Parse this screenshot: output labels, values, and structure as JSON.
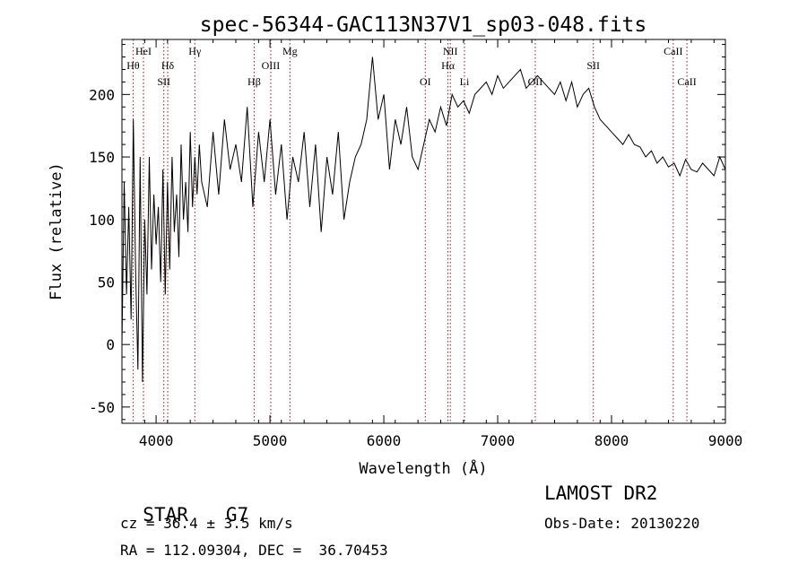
{
  "chart_data": {
    "type": "line",
    "title": "spec-56344-GAC113N37V1_sp03-048.fits",
    "xlabel": "Wavelength (Å)",
    "ylabel": "Flux (relative)",
    "xlim": [
      3700,
      9000
    ],
    "ylim": [
      -63,
      244
    ],
    "xticks": [
      4000,
      5000,
      6000,
      7000,
      8000,
      9000
    ],
    "yticks": [
      -50,
      0,
      50,
      100,
      150,
      200
    ],
    "grid": false,
    "line_color": "#000000",
    "marker_color": "#8b1a1a",
    "series": [
      {
        "x": [
          3700,
          3720,
          3740,
          3760,
          3780,
          3800,
          3820,
          3840,
          3860,
          3880,
          3900,
          3920,
          3940,
          3960,
          3980,
          4000,
          4020,
          4040,
          4060,
          4080,
          4100,
          4120,
          4140,
          4160,
          4180,
          4200,
          4220,
          4240,
          4260,
          4280,
          4300,
          4320,
          4340,
          4360,
          4380,
          4400,
          4450,
          4500,
          4550,
          4600,
          4650,
          4700,
          4750,
          4800,
          4850,
          4900,
          4950,
          5000,
          5050,
          5100,
          5150,
          5200,
          5250,
          5300,
          5350,
          5400,
          5450,
          5500,
          5550,
          5600,
          5650,
          5700,
          5750,
          5800,
          5850,
          5900,
          5950,
          6000,
          6050,
          6100,
          6150,
          6200,
          6250,
          6300,
          6350,
          6400,
          6450,
          6500,
          6550,
          6600,
          6650,
          6700,
          6750,
          6800,
          6850,
          6900,
          6950,
          7000,
          7050,
          7100,
          7150,
          7200,
          7250,
          7300,
          7350,
          7400,
          7450,
          7500,
          7550,
          7600,
          7650,
          7700,
          7750,
          7800,
          7850,
          7900,
          7950,
          8000,
          8050,
          8100,
          8150,
          8200,
          8250,
          8300,
          8350,
          8400,
          8450,
          8500,
          8550,
          8600,
          8650,
          8700,
          8750,
          8800,
          8850,
          8900,
          8950,
          9000
        ],
        "values": [
          0,
          130,
          40,
          110,
          20,
          180,
          60,
          -20,
          150,
          -30,
          100,
          40,
          150,
          60,
          120,
          80,
          110,
          50,
          140,
          40,
          130,
          60,
          150,
          90,
          120,
          70,
          160,
          100,
          130,
          90,
          170,
          110,
          150,
          120,
          160,
          130,
          110,
          170,
          120,
          180,
          140,
          160,
          130,
          190,
          110,
          170,
          130,
          180,
          120,
          160,
          100,
          150,
          130,
          170,
          110,
          160,
          90,
          150,
          120,
          170,
          100,
          130,
          150,
          160,
          180,
          230,
          180,
          200,
          140,
          180,
          160,
          190,
          150,
          140,
          160,
          180,
          170,
          190,
          175,
          200,
          190,
          195,
          185,
          200,
          205,
          210,
          200,
          215,
          205,
          210,
          215,
          220,
          205,
          210,
          215,
          210,
          205,
          200,
          210,
          195,
          210,
          190,
          200,
          205,
          190,
          180,
          175,
          170,
          165,
          160,
          168,
          160,
          158,
          150,
          155,
          145,
          150,
          142,
          145,
          135,
          148,
          140,
          138,
          145,
          140,
          135,
          150,
          140
        ]
      }
    ],
    "line_markers": [
      {
        "label": "Hθ",
        "x": 3798,
        "tier": 2
      },
      {
        "label": "HeI",
        "x": 3889,
        "tier": 1
      },
      {
        "label": "SII",
        "x": 4068,
        "tier": 3
      },
      {
        "label": "Hδ",
        "x": 4102,
        "tier": 2
      },
      {
        "label": "Hγ",
        "x": 4340,
        "tier": 1
      },
      {
        "label": "Hβ",
        "x": 4861,
        "tier": 3
      },
      {
        "label": "OIII",
        "x": 5007,
        "tier": 2
      },
      {
        "label": "Mg",
        "x": 5175,
        "tier": 1
      },
      {
        "label": "OI",
        "x": 6364,
        "tier": 3
      },
      {
        "label": "NII",
        "x": 6584,
        "tier": 1
      },
      {
        "label": "Hα",
        "x": 6563,
        "tier": 2
      },
      {
        "label": "Li",
        "x": 6708,
        "tier": 3
      },
      {
        "label": "OII",
        "x": 7330,
        "tier": 3
      },
      {
        "label": "SII",
        "x": 7840,
        "tier": 2
      },
      {
        "label": "CaII",
        "x": 8542,
        "tier": 1
      },
      {
        "label": "CaII",
        "x": 8662,
        "tier": 3
      }
    ]
  },
  "info": {
    "class": "STAR",
    "subclass": "G7",
    "survey": "LAMOST DR2",
    "cz": "cz = 36.4 ± 3.5 km/s",
    "obs_date": "Obs-Date: 20130220",
    "radec": "RA = 112.09304, DEC =  36.70453"
  }
}
